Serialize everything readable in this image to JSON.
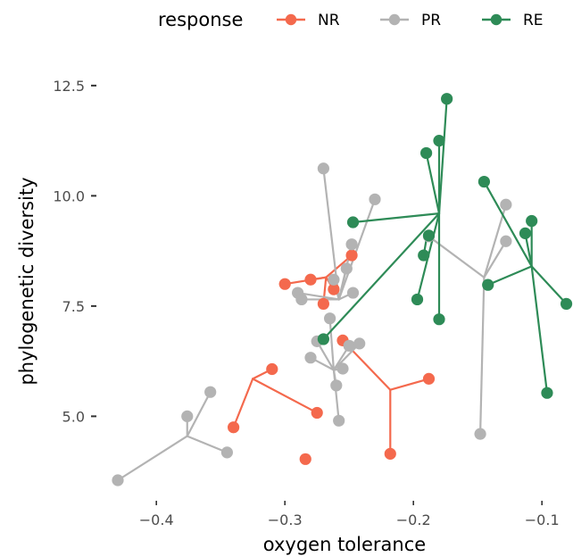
{
  "chart_data": {
    "type": "scatter",
    "title": "",
    "xlabel": "oxygen tolerance",
    "ylabel": "phylogenetic diversity",
    "xlim": [
      -0.44,
      -0.08
    ],
    "ylim": [
      3.3,
      12.7
    ],
    "x_ticks": [
      -0.4,
      -0.3,
      -0.2,
      -0.1
    ],
    "x_tick_labels": [
      "−0.4",
      "−0.3",
      "−0.2",
      "−0.1"
    ],
    "y_ticks": [
      5.0,
      7.5,
      10.0,
      12.5
    ],
    "y_tick_labels": [
      "5.0",
      "7.5",
      "10.0",
      "12.5"
    ],
    "grid": false,
    "legend": {
      "title": "response",
      "position": "top",
      "entries": [
        "NR",
        "PR",
        "RE"
      ]
    },
    "series": [
      {
        "name": "NR",
        "color": "#f4694d",
        "clusters": [
          {
            "center": [
              -0.325,
              5.85
            ],
            "points": [
              [
                -0.34,
                4.75
              ],
              [
                -0.31,
                6.07
              ],
              [
                -0.275,
                5.08
              ]
            ]
          },
          {
            "center": [
              -0.268,
              8.15
            ],
            "points": [
              [
                -0.3,
                8.0
              ],
              [
                -0.28,
                8.1
              ],
              [
                -0.27,
                7.55
              ],
              [
                -0.262,
                7.88
              ],
              [
                -0.248,
                8.65
              ]
            ]
          },
          {
            "center": [
              -0.218,
              5.6
            ],
            "points": [
              [
                -0.255,
                6.72
              ],
              [
                -0.218,
                4.15
              ],
              [
                -0.188,
                5.85
              ]
            ]
          },
          {
            "center": null,
            "points": [
              [
                -0.284,
                4.03
              ]
            ]
          }
        ]
      },
      {
        "name": "PR",
        "color": "#b3b3b3",
        "clusters": [
          {
            "center": [
              -0.376,
              4.55
            ],
            "points": [
              [
                -0.43,
                3.55
              ],
              [
                -0.376,
                5.0
              ],
              [
                -0.358,
                5.55
              ],
              [
                -0.345,
                4.18
              ]
            ]
          },
          {
            "center": [
              -0.262,
              6.05
            ],
            "points": [
              [
                -0.28,
                6.33
              ],
              [
                -0.275,
                6.7
              ],
              [
                -0.265,
                7.22
              ],
              [
                -0.26,
                5.7
              ],
              [
                -0.258,
                4.9
              ],
              [
                -0.255,
                6.08
              ],
              [
                -0.25,
                6.6
              ],
              [
                -0.242,
                6.65
              ]
            ]
          },
          {
            "center": [
              -0.258,
              7.65
            ],
            "points": [
              [
                -0.29,
                7.8
              ],
              [
                -0.287,
                7.65
              ],
              [
                -0.27,
                10.62
              ],
              [
                -0.262,
                8.1
              ],
              [
                -0.252,
                8.35
              ],
              [
                -0.248,
                8.9
              ],
              [
                -0.247,
                7.8
              ],
              [
                -0.23,
                9.92
              ]
            ]
          },
          {
            "center": [
              -0.145,
              8.15
            ],
            "points": [
              [
                -0.188,
                9.08
              ],
              [
                -0.148,
                4.6
              ],
              [
                -0.128,
                8.97
              ],
              [
                -0.128,
                9.8
              ]
            ]
          }
        ]
      },
      {
        "name": "RE",
        "color": "#2e8b57",
        "clusters": [
          {
            "center": [
              -0.18,
              9.6
            ],
            "points": [
              [
                -0.27,
                6.75
              ],
              [
                -0.247,
                9.4
              ],
              [
                -0.197,
                7.65
              ],
              [
                -0.19,
                10.97
              ],
              [
                -0.18,
                11.25
              ],
              [
                -0.18,
                7.2
              ],
              [
                -0.174,
                12.2
              ]
            ]
          },
          {
            "center": [
              -0.19,
              9.0
            ],
            "points": [
              [
                -0.192,
                8.65
              ],
              [
                -0.188,
                9.1
              ]
            ]
          },
          {
            "center": [
              -0.108,
              8.4
            ],
            "points": [
              [
                -0.145,
                10.32
              ],
              [
                -0.142,
                7.98
              ],
              [
                -0.113,
                9.15
              ],
              [
                -0.108,
                9.43
              ],
              [
                -0.096,
                5.53
              ],
              [
                -0.081,
                7.55
              ]
            ]
          }
        ]
      }
    ]
  }
}
